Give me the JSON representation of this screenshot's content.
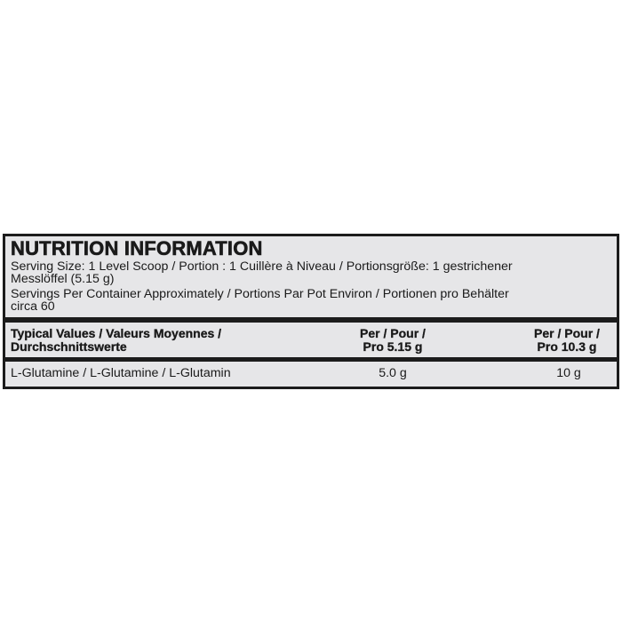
{
  "title": "NUTRITION INFORMATION",
  "serving_size": {
    "line1": "Serving Size: 1 Level Scoop / Portion : 1 Cuillère à Niveau / Portionsgröße: 1 gestrichener",
    "line2": "Messlöffel (5.15 g)"
  },
  "servings_per_container": {
    "line1": "Servings Per Container Approximately / Portions Par Pot Environ / Portionen pro Behälter",
    "line2": "circa 60"
  },
  "table": {
    "headers": [
      {
        "line1": "Typical Values / Valeurs Moyennes /",
        "line2": "Durchschnittswerte"
      },
      {
        "line1": "Per / Pour /",
        "line2": "Pro 5.15 g"
      },
      {
        "line1": "Per / Pour /",
        "line2": "Pro 10.3 g"
      }
    ],
    "rows": [
      {
        "name": "L-Glutamine / L-Glutamine / L-Glutamin",
        "per_serving": "5.0 g",
        "per_double": "10 g"
      }
    ]
  }
}
